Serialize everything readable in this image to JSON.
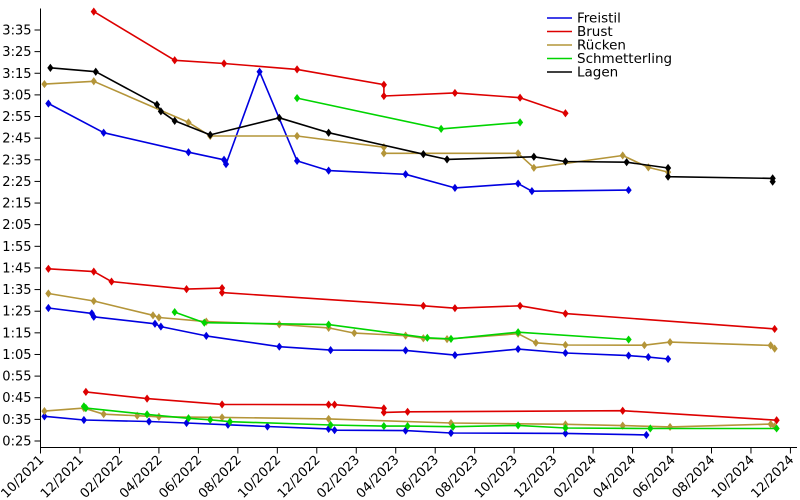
{
  "chart_data": {
    "type": "line",
    "title": "",
    "marker": "diamond",
    "background": "#ffffff",
    "axis_color": "#000000",
    "x_axis": {
      "unit": "months since 10/2021 (one tick every 2 months)",
      "tick_labels": [
        "10/2021",
        "12/2021",
        "02/2022",
        "04/2022",
        "06/2022",
        "08/2022",
        "10/2022",
        "12/2022",
        "02/2023",
        "04/2023",
        "06/2023",
        "08/2023",
        "10/2023",
        "12/2023",
        "02/2024",
        "04/2024",
        "06/2024",
        "08/2024",
        "10/2024",
        "12/2024"
      ]
    },
    "y_axis": {
      "unit": "time m:ss (seconds internally)",
      "min_seconds": 25,
      "max_seconds": 225,
      "tick_step_seconds": 10,
      "tick_labels": [
        "0:25",
        "0:35",
        "0:45",
        "0:55",
        "1:05",
        "1:15",
        "1:25",
        "1:35",
        "1:45",
        "1:55",
        "2:05",
        "2:15",
        "2:25",
        "2:35",
        "2:45",
        "2:55",
        "3:05",
        "3:15",
        "3:25",
        "3:35"
      ]
    },
    "legend": {
      "position": "top-right",
      "entries": [
        {
          "label": "Freistil",
          "color": "#0000e0"
        },
        {
          "label": "Brust",
          "color": "#dd0000"
        },
        {
          "label": "Rücken",
          "color": "#b49539"
        },
        {
          "label": "Schmetterling",
          "color": "#00d400"
        },
        {
          "label": "Lagen",
          "color": "#000000"
        }
      ]
    },
    "series": [
      {
        "name": "Freistil",
        "color": "#0000e0",
        "segments": {
          "dist200": [
            [
              0.4,
              181
            ],
            [
              3.2,
              167.5
            ],
            [
              7.5,
              158.5
            ],
            [
              9.3,
              155
            ],
            [
              9.4,
              153
            ],
            [
              11.1,
              195.7
            ],
            [
              13,
              154.5
            ],
            [
              14.6,
              150
            ],
            [
              18.5,
              148.3
            ],
            [
              21,
              142
            ],
            [
              24.2,
              144
            ],
            [
              24.9,
              140.5
            ],
            [
              29.8,
              141
            ]
          ],
          "dist100": [
            [
              0.4,
              86.5
            ],
            [
              2.6,
              84
            ],
            [
              2.7,
              82.4
            ],
            [
              5.8,
              79.2
            ],
            [
              6.1,
              77.9
            ],
            [
              8.4,
              73.6
            ],
            [
              12.1,
              68.6
            ],
            [
              14.7,
              67
            ],
            [
              18.5,
              66.9
            ],
            [
              21,
              64.7
            ],
            [
              24.2,
              67.5
            ],
            [
              26.6,
              65.7
            ],
            [
              29.8,
              64.5
            ],
            [
              30.8,
              63.8
            ],
            [
              31.8,
              62.9
            ]
          ],
          "dist50": [
            [
              0.2,
              36.4
            ],
            [
              2.2,
              34.7
            ],
            [
              5.5,
              34
            ],
            [
              7.4,
              33.3
            ],
            [
              9.5,
              32.5
            ],
            [
              11.5,
              31.7
            ],
            [
              14.6,
              30.6
            ],
            [
              14.9,
              30
            ],
            [
              18.5,
              29.8
            ],
            [
              20.8,
              28.7
            ],
            [
              26.6,
              28.5
            ],
            [
              30.7,
              27.8
            ]
          ]
        }
      },
      {
        "name": "Brust",
        "color": "#dd0000",
        "segments": {
          "dist200": [
            [
              2.7,
              223.5
            ],
            [
              6.8,
              201
            ],
            [
              9.3,
              199.5
            ],
            [
              13,
              196.8
            ],
            [
              17.4,
              189.7
            ],
            [
              17.4,
              184.5
            ],
            [
              21,
              185.9
            ],
            [
              24.3,
              183.7
            ],
            [
              26.6,
              176.5
            ]
          ],
          "dist100": [
            [
              0.4,
              104.6
            ],
            [
              2.7,
              103.3
            ],
            [
              3.6,
              98.7
            ],
            [
              7.4,
              95.2
            ],
            [
              9.2,
              95.7
            ],
            [
              9.2,
              93.6
            ],
            [
              19.4,
              87.5
            ],
            [
              21,
              86.4
            ],
            [
              24.3,
              87.5
            ],
            [
              26.6,
              83.9
            ],
            [
              37.2,
              76.8
            ]
          ],
          "dist50": [
            [
              2.3,
              47.7
            ],
            [
              5.4,
              44.6
            ],
            [
              9.2,
              41.9
            ],
            [
              14.6,
              41.8
            ],
            [
              14.9,
              41.8
            ],
            [
              17.4,
              40.1
            ],
            [
              17.4,
              38.2
            ],
            [
              18.6,
              38.5
            ],
            [
              29.5,
              39
            ],
            [
              37.3,
              34.6
            ]
          ]
        }
      },
      {
        "name": "Rücken",
        "color": "#b49539",
        "segments": {
          "dist200": [
            [
              0.2,
              190
            ],
            [
              2.7,
              191.3
            ],
            [
              7.5,
              172.3
            ],
            [
              8.6,
              166
            ],
            [
              13,
              166
            ],
            [
              17.4,
              160.8
            ],
            [
              17.4,
              158
            ],
            [
              24.2,
              158
            ],
            [
              25,
              151.3
            ],
            [
              29.5,
              157
            ],
            [
              30.8,
              151.5
            ],
            [
              31.8,
              149.3
            ]
          ],
          "dist100": [
            [
              0.4,
              93.2
            ],
            [
              2.7,
              89.7
            ],
            [
              5.7,
              83.1
            ],
            [
              6,
              82.1
            ],
            [
              8.4,
              80.2
            ],
            [
              12.1,
              78.9
            ],
            [
              14.6,
              77.3
            ],
            [
              15.9,
              74.9
            ],
            [
              18.5,
              73.7
            ],
            [
              19.4,
              72.5
            ],
            [
              20.6,
              72.1
            ],
            [
              24.2,
              74.6
            ],
            [
              25.1,
              70.4
            ],
            [
              26.6,
              69.4
            ],
            [
              30.6,
              69.3
            ],
            [
              31.9,
              70.7
            ],
            [
              37,
              69.2
            ],
            [
              37.2,
              67.7
            ]
          ],
          "dist50": [
            [
              0.2,
              38.8
            ],
            [
              2.2,
              40.2
            ],
            [
              3.2,
              37.4
            ],
            [
              4.9,
              36.7
            ],
            [
              6,
              36.2
            ],
            [
              9.2,
              35.9
            ],
            [
              14.6,
              35.2
            ],
            [
              20.8,
              33.3
            ],
            [
              26.6,
              32.7
            ],
            [
              29.5,
              32.1
            ],
            [
              31.9,
              31.5
            ],
            [
              37,
              32.8
            ],
            [
              37.2,
              31.8
            ]
          ]
        }
      },
      {
        "name": "Schmetterling",
        "color": "#00d400",
        "segments": {
          "dist200": [
            [
              13,
              183.5
            ],
            [
              20.3,
              169.3
            ],
            [
              24.3,
              172.3
            ]
          ],
          "dist100": [
            [
              6.8,
              84.6
            ],
            [
              8.3,
              79.7
            ],
            [
              14.6,
              78.8
            ],
            [
              19.6,
              72.7
            ],
            [
              20.8,
              72.2
            ],
            [
              24.2,
              75.3
            ],
            [
              29.8,
              71.9
            ]
          ],
          "dist50": [
            [
              2.2,
              41
            ],
            [
              2.3,
              40.2
            ],
            [
              5.4,
              37.3
            ],
            [
              7.5,
              35.5
            ],
            [
              8.6,
              34.8
            ],
            [
              9.6,
              33.9
            ],
            [
              14.7,
              32.4
            ],
            [
              17.4,
              31.9
            ],
            [
              18.6,
              31.9
            ],
            [
              20.9,
              31.6
            ],
            [
              24.2,
              32.2
            ],
            [
              26.6,
              31
            ],
            [
              30.9,
              30.8
            ],
            [
              37.3,
              30.8
            ]
          ]
        }
      },
      {
        "name": "Lagen",
        "color": "#000000",
        "segments": {
          "dist200": [
            [
              0.5,
              197.5
            ],
            [
              2.8,
              195.7
            ],
            [
              5.9,
              180.5
            ],
            [
              6.1,
              177.4
            ],
            [
              6.8,
              173
            ],
            [
              8.6,
              166.5
            ],
            [
              12.1,
              174.4
            ],
            [
              14.6,
              167.5
            ],
            [
              19.4,
              157.6
            ],
            [
              20.6,
              155.2
            ],
            [
              25,
              156.4
            ],
            [
              26.6,
              154.2
            ],
            [
              29.7,
              153.9
            ],
            [
              31.8,
              151.2
            ],
            [
              31.8,
              147.2
            ],
            [
              37.1,
              146.4
            ],
            [
              37.1,
              144.9
            ]
          ]
        }
      }
    ]
  }
}
